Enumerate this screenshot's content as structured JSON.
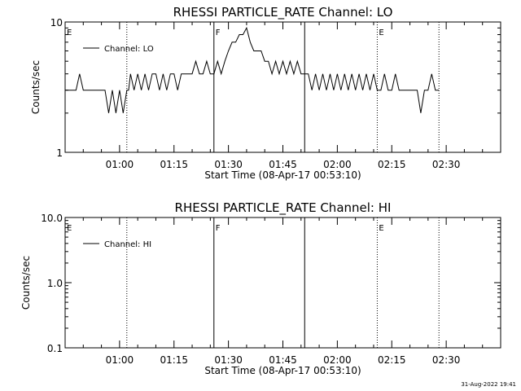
{
  "chart_data": [
    {
      "type": "line",
      "title": "RHESSI PARTICLE_RATE Channel: LO",
      "xlabel": "Start Time (08-Apr-17 00:53:10)",
      "ylabel": "Counts/sec",
      "y_scale": "log",
      "ylim": [
        1,
        10
      ],
      "y_ticks": [
        1,
        10
      ],
      "y_tick_labels": [
        "1",
        "10"
      ],
      "xlim_minutes": [
        -8,
        112
      ],
      "x_ticks": [
        7,
        22,
        37,
        52,
        67,
        82,
        97
      ],
      "x_tick_labels": [
        "01:00",
        "01:15",
        "01:30",
        "01:45",
        "02:00",
        "02:15",
        "02:30"
      ],
      "legend_label": "Channel: LO",
      "legend_position": "top-left",
      "grid": false,
      "markers": [
        {
          "t": -8,
          "style": "solid",
          "label": "E"
        },
        {
          "t": 9,
          "style": "dotted",
          "label": ""
        },
        {
          "t": 33,
          "style": "solid",
          "label": "F"
        },
        {
          "t": 58,
          "style": "solid",
          "label": ""
        },
        {
          "t": 78,
          "style": "dotted",
          "label": "E"
        },
        {
          "t": 95,
          "style": "dotted",
          "label": ""
        }
      ],
      "series": [
        {
          "name": "Channel: LO",
          "points": [
            [
              -8,
              3
            ],
            [
              -6,
              3
            ],
            [
              -5,
              3
            ],
            [
              -4,
              4
            ],
            [
              -3,
              3
            ],
            [
              -2,
              3
            ],
            [
              -1,
              3
            ],
            [
              0,
              3
            ],
            [
              1,
              3
            ],
            [
              2,
              3
            ],
            [
              3,
              3
            ],
            [
              4,
              2
            ],
            [
              5,
              3
            ],
            [
              6,
              2
            ],
            [
              7,
              3
            ],
            [
              8,
              2
            ],
            [
              9,
              3
            ],
            [
              9.5,
              3
            ],
            [
              10,
              4
            ],
            [
              11,
              3
            ],
            [
              12,
              4
            ],
            [
              13,
              3
            ],
            [
              14,
              4
            ],
            [
              15,
              3
            ],
            [
              16,
              4
            ],
            [
              17,
              4
            ],
            [
              18,
              3
            ],
            [
              19,
              4
            ],
            [
              20,
              3
            ],
            [
              21,
              4
            ],
            [
              22,
              4
            ],
            [
              23,
              3
            ],
            [
              24,
              4
            ],
            [
              25,
              4
            ],
            [
              26,
              4
            ],
            [
              27,
              4
            ],
            [
              28,
              5
            ],
            [
              29,
              4
            ],
            [
              30,
              4
            ],
            [
              31,
              5
            ],
            [
              32,
              4
            ],
            [
              33,
              4
            ],
            [
              34,
              5
            ],
            [
              35,
              4
            ],
            [
              36,
              5
            ],
            [
              37,
              6
            ],
            [
              38,
              7
            ],
            [
              39,
              7
            ],
            [
              40,
              8
            ],
            [
              41,
              8
            ],
            [
              42,
              9
            ],
            [
              43,
              7
            ],
            [
              44,
              6
            ],
            [
              45,
              6
            ],
            [
              46,
              6
            ],
            [
              47,
              5
            ],
            [
              48,
              5
            ],
            [
              49,
              4
            ],
            [
              50,
              5
            ],
            [
              51,
              4
            ],
            [
              52,
              5
            ],
            [
              53,
              4
            ],
            [
              54,
              5
            ],
            [
              55,
              4
            ],
            [
              56,
              5
            ],
            [
              57,
              4
            ],
            [
              58,
              4
            ],
            [
              59,
              4
            ],
            [
              60,
              3
            ],
            [
              61,
              4
            ],
            [
              62,
              3
            ],
            [
              63,
              4
            ],
            [
              64,
              3
            ],
            [
              65,
              4
            ],
            [
              66,
              3
            ],
            [
              67,
              4
            ],
            [
              68,
              3
            ],
            [
              69,
              4
            ],
            [
              70,
              3
            ],
            [
              71,
              4
            ],
            [
              72,
              3
            ],
            [
              73,
              4
            ],
            [
              74,
              3
            ],
            [
              75,
              4
            ],
            [
              76,
              3
            ],
            [
              77,
              4
            ],
            [
              78,
              3
            ],
            [
              79,
              3
            ],
            [
              80,
              4
            ],
            [
              81,
              3
            ],
            [
              82,
              3
            ],
            [
              83,
              4
            ],
            [
              84,
              3
            ],
            [
              85,
              3
            ],
            [
              86,
              3
            ],
            [
              87,
              3
            ],
            [
              88,
              3
            ],
            [
              89,
              3
            ],
            [
              90,
              2
            ],
            [
              91,
              3
            ],
            [
              92,
              3
            ],
            [
              93,
              4
            ],
            [
              94,
              3
            ],
            [
              95,
              3
            ]
          ]
        }
      ]
    },
    {
      "type": "line",
      "title": "RHESSI PARTICLE_RATE Channel: HI",
      "xlabel": "Start Time (08-Apr-17 00:53:10)",
      "ylabel": "Counts/sec",
      "y_scale": "log",
      "ylim": [
        0.1,
        10
      ],
      "y_ticks": [
        0.1,
        1,
        10
      ],
      "y_tick_labels": [
        "0.1",
        "1.0",
        "10.0"
      ],
      "xlim_minutes": [
        -8,
        112
      ],
      "x_ticks": [
        7,
        22,
        37,
        52,
        67,
        82,
        97
      ],
      "x_tick_labels": [
        "01:00",
        "01:15",
        "01:30",
        "01:45",
        "02:00",
        "02:15",
        "02:30"
      ],
      "legend_label": "Channel: HI",
      "legend_position": "top-left",
      "grid": false,
      "markers": [
        {
          "t": -8,
          "style": "solid",
          "label": "E"
        },
        {
          "t": 9,
          "style": "dotted",
          "label": ""
        },
        {
          "t": 33,
          "style": "solid",
          "label": "F"
        },
        {
          "t": 58,
          "style": "solid",
          "label": ""
        },
        {
          "t": 78,
          "style": "dotted",
          "label": "E"
        },
        {
          "t": 95,
          "style": "dotted",
          "label": ""
        }
      ],
      "series": [
        {
          "name": "Channel: HI",
          "points": []
        }
      ]
    }
  ],
  "footer": {
    "timestamp": "31-Aug-2022 19:41"
  }
}
